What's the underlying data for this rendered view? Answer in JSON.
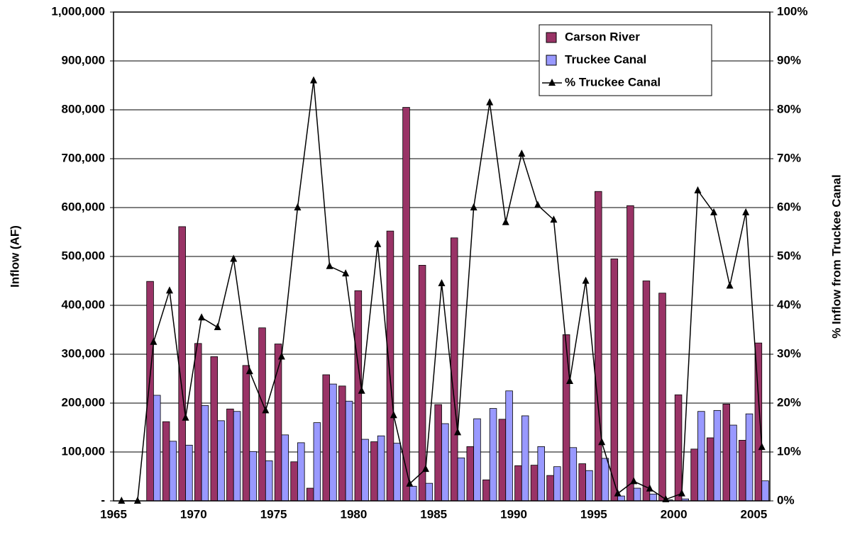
{
  "chart_data": {
    "type": "bar_line",
    "y_label": "Inflow (AF)",
    "y2_label": "% Inflow from Truckee Canal",
    "categories": [
      1965,
      null,
      null,
      null,
      null,
      1970,
      null,
      null,
      null,
      null,
      1975,
      null,
      null,
      null,
      null,
      1980,
      null,
      null,
      null,
      null,
      1985,
      null,
      null,
      null,
      null,
      1990,
      null,
      null,
      null,
      null,
      1995,
      null,
      null,
      null,
      null,
      2000,
      null,
      null,
      null,
      null,
      2005
    ],
    "series": [
      {
        "name": "Carson River",
        "type": "bar",
        "color": "#993366",
        "values": [
          null,
          null,
          449000,
          162000,
          561000,
          322000,
          295000,
          188000,
          277000,
          354000,
          321000,
          80000,
          26000,
          258000,
          235000,
          430000,
          121000,
          552000,
          805000,
          482000,
          197000,
          538000,
          111000,
          43000,
          167000,
          72000,
          73000,
          52000,
          340000,
          76000,
          633000,
          495000,
          604000,
          450000,
          425000,
          217000,
          106000,
          129000,
          198000,
          124000,
          323000
        ]
      },
      {
        "name": "Truckee Canal",
        "type": "bar",
        "color": "#9999ff",
        "values": [
          null,
          null,
          216000,
          122000,
          114000,
          195000,
          164000,
          183000,
          101000,
          82000,
          135000,
          119000,
          160000,
          239000,
          204000,
          126000,
          133000,
          118000,
          30000,
          36000,
          158000,
          88000,
          168000,
          189000,
          225000,
          174000,
          111000,
          70000,
          109000,
          62000,
          87000,
          10000,
          26000,
          14000,
          2000,
          4000,
          183000,
          185000,
          155000,
          178000,
          41000
        ]
      },
      {
        "name": "% Truckee Canal",
        "type": "line",
        "axis": "y2",
        "color": "#000000",
        "values": [
          0,
          0,
          32.5,
          43,
          17,
          37.5,
          35.5,
          49.5,
          26.5,
          18.5,
          29.5,
          60,
          86,
          48,
          46.5,
          22.5,
          52.5,
          17.5,
          3.5,
          6.5,
          44.5,
          14,
          60,
          81.5,
          57,
          71,
          60.5,
          57.5,
          24.5,
          45,
          12,
          1.5,
          4,
          2.5,
          0.3,
          1.5,
          63.5,
          59,
          44,
          59,
          11
        ]
      }
    ],
    "ylim": [
      0,
      1000000
    ],
    "yticks": [
      {
        "value": 0,
        "label": "-"
      },
      {
        "value": 100000,
        "label": "100,000"
      },
      {
        "value": 200000,
        "label": "200,000"
      },
      {
        "value": 300000,
        "label": "300,000"
      },
      {
        "value": 400000,
        "label": "400,000"
      },
      {
        "value": 500000,
        "label": "500,000"
      },
      {
        "value": 600000,
        "label": "600,000"
      },
      {
        "value": 700000,
        "label": "700,000"
      },
      {
        "value": 800000,
        "label": "800,000"
      },
      {
        "value": 900000,
        "label": "900,000"
      },
      {
        "value": 1000000,
        "label": "1,000,000"
      }
    ],
    "y2lim": [
      0,
      100
    ],
    "y2ticks": [
      {
        "value": 0,
        "label": "0%"
      },
      {
        "value": 10,
        "label": "10%"
      },
      {
        "value": 20,
        "label": "20%"
      },
      {
        "value": 30,
        "label": "30%"
      },
      {
        "value": 40,
        "label": "40%"
      },
      {
        "value": 50,
        "label": "50%"
      },
      {
        "value": 60,
        "label": "60%"
      },
      {
        "value": 70,
        "label": "70%"
      },
      {
        "value": 80,
        "label": "80%"
      },
      {
        "value": 90,
        "label": "90%"
      },
      {
        "value": 100,
        "label": "100%"
      }
    ],
    "grid": true,
    "legend": "top-right"
  }
}
